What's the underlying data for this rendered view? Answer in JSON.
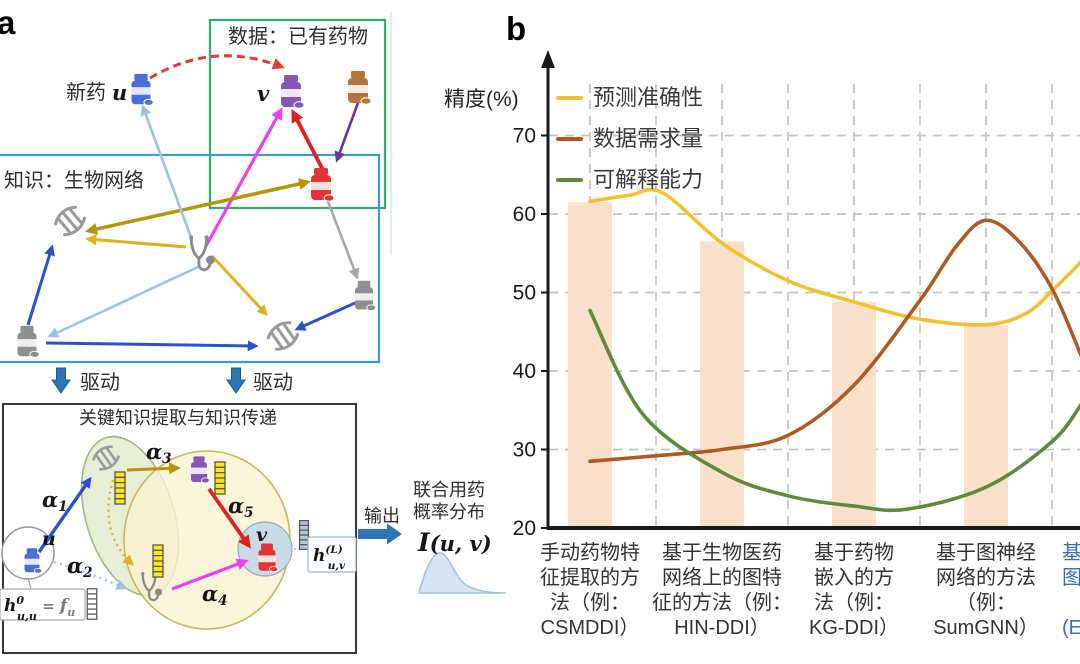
{
  "panel_a": {
    "label": "a",
    "data_box_title": "数据：已有药物",
    "knowledge_box_title": "知识：生物网络",
    "new_drug_prefix": "新药",
    "new_drug_var": "u",
    "existing_drug_var": "v",
    "drive_label_left": "驱动",
    "drive_label_right": "驱动",
    "extraction_box_title": "关键知识提取与知识传递",
    "u_node_label": "u",
    "v_node_label": "v",
    "alphas": [
      {
        "sym": "α",
        "sub": "1"
      },
      {
        "sym": "α",
        "sub": "2"
      },
      {
        "sym": "α",
        "sub": "3"
      },
      {
        "sym": "α",
        "sub": "4"
      },
      {
        "sym": "α",
        "sub": "5"
      }
    ],
    "formula_init": {
      "h": "h",
      "sup": "0",
      "sub": "u,u",
      "eq": " = ",
      "f": "f",
      "fsub": "u"
    },
    "formula_out": {
      "h": "h",
      "sup": "(L)",
      "sub": "u,v"
    },
    "output_label": "输出",
    "distribution_title_line1": "联合用药",
    "distribution_title_line2": "概率分布",
    "distribution_formula": {
      "name": "I",
      "args": "(u, v)"
    },
    "icon_colors": {
      "new_drug_pill": "#4a6fd8",
      "existing_drug_pill": "#8757b8",
      "related_drug_pill": "#b5743d",
      "knowledge_drug_pill": "#e23434",
      "network_drug_pill": "#8f8f8f",
      "data_box_border": "#2fae6b",
      "knowledge_box_border": "#3b9ac9",
      "drive_arrow": "#2e75b6"
    }
  },
  "panel_b": {
    "label": "b"
  },
  "chart_data": {
    "type": "line",
    "title": "",
    "xlabel": "",
    "ylabel": "精度(%)",
    "ylim": [
      20,
      72
    ],
    "yticks": [
      70,
      60,
      50,
      40,
      30,
      20
    ],
    "grid": true,
    "legend_position": "top-left",
    "categories": [
      {
        "label": "手动药物特\n征提取的方\n法（例：\nCSMDDI）",
        "color": "#333333",
        "clipped": false
      },
      {
        "label": "基于生物医药\n网络上的图特\n征的方法（例：\nHIN-DDI）",
        "color": "#333333",
        "clipped": false
      },
      {
        "label": "基于药物\n嵌入的方\n法（例：\nKG-DDI）",
        "color": "#333333",
        "clipped": false
      },
      {
        "label": "基于图神经\n网络的方法\n（例：\nSumGNN）",
        "color": "#333333",
        "clipped": false
      },
      {
        "label": "基\n图\n\n(E",
        "color": "#2e75b6",
        "clipped": true
      }
    ],
    "bars": {
      "color": "#f8e0cb",
      "values": [
        61.5,
        56.5,
        48.8,
        45.8,
        null
      ]
    },
    "series": [
      {
        "name": "预测准确性",
        "color": "#f2c12e",
        "points": [
          [
            1,
            61.6
          ],
          [
            1.3,
            62.4
          ],
          [
            1.55,
            62.7
          ],
          [
            2,
            56.3
          ],
          [
            2.5,
            51.5
          ],
          [
            3,
            48.8
          ],
          [
            3.5,
            46.6
          ],
          [
            4,
            45.9
          ],
          [
            4.3,
            47.3
          ],
          [
            4.5,
            50.2
          ],
          [
            4.72,
            53.9
          ]
        ]
      },
      {
        "name": "数据需求量",
        "color": "#b05a21",
        "points": [
          [
            1,
            28.5
          ],
          [
            1.5,
            29.2
          ],
          [
            2,
            30.0
          ],
          [
            2.5,
            31.8
          ],
          [
            3,
            38.2
          ],
          [
            3.5,
            49.0
          ],
          [
            3.78,
            56.0
          ],
          [
            4,
            59.2
          ],
          [
            4.25,
            56.5
          ],
          [
            4.5,
            50.5
          ],
          [
            4.72,
            42.0
          ]
        ]
      },
      {
        "name": "可解释能力",
        "color": "#5e8a3c",
        "points": [
          [
            1,
            47.7
          ],
          [
            1.4,
            34.5
          ],
          [
            2,
            27.1
          ],
          [
            2.5,
            24.1
          ],
          [
            3,
            22.8
          ],
          [
            3.4,
            22.4
          ],
          [
            4,
            25.2
          ],
          [
            4.5,
            31.0
          ],
          [
            4.72,
            35.7
          ]
        ]
      }
    ]
  }
}
